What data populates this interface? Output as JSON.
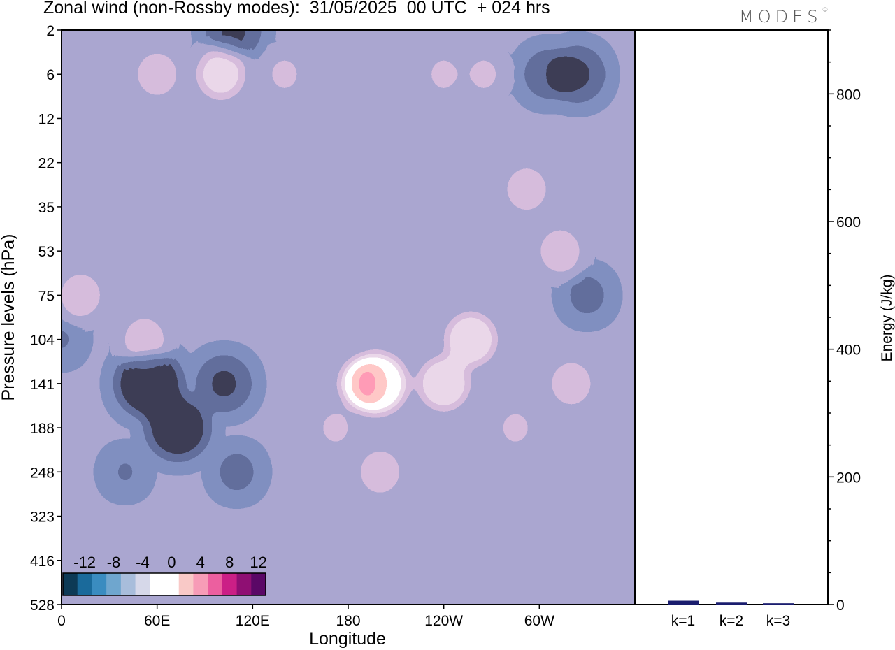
{
  "title": "Zonal wind (non-Rossby modes):  31/05/2025  00 UTC  + 024 hrs",
  "logo": "MODES",
  "logo_mark": "©",
  "colors": {
    "neg": [
      "#0d3a56",
      "#1a6a9b",
      "#3a8cc0",
      "#6fa6ce",
      "#a8bddb",
      "#d6d8e9"
    ],
    "zero": "#ffffff",
    "pos": [
      "#f9c9c7",
      "#f79cb7",
      "#ec5f9f",
      "#cb1f86",
      "#8f0f73",
      "#5a0866"
    ],
    "bars": "#1a1d6e"
  },
  "chart_data": [
    {
      "type": "heatmap",
      "title": "Zonal wind (non-Rossby modes):  31/05/2025  00 UTC  + 024 hrs",
      "xlabel": "Longitude",
      "ylabel": "Pressure levels (hPa)",
      "x_ticks": [
        "0",
        "60E",
        "120E",
        "180",
        "120W",
        "60W"
      ],
      "y_ticks": [
        "2",
        "6",
        "12",
        "22",
        "35",
        "53",
        "75",
        "104",
        "141",
        "188",
        "248",
        "323",
        "416",
        "528"
      ],
      "colorbar_ticks": [
        "-12",
        "-8",
        "-4",
        "0",
        "4",
        "8",
        "12"
      ],
      "contour_levels": [
        -14,
        -12,
        -10,
        -8,
        -6,
        -4,
        -2,
        2,
        4,
        6,
        8,
        10,
        12,
        14
      ],
      "features": [
        {
          "lon": 55,
          "level": "141",
          "value": -14
        },
        {
          "lon": 73,
          "level": "188",
          "value": -13
        },
        {
          "lon": 102,
          "level": "141",
          "value": -10
        },
        {
          "lon": 108,
          "level": "2",
          "value": -10
        },
        {
          "lon": 110,
          "level": "248",
          "value": -6
        },
        {
          "lon": 324,
          "level": "6",
          "value": -10
        },
        {
          "lon": 305,
          "level": "6",
          "value": -8
        },
        {
          "lon": 330,
          "level": "75",
          "value": -6
        },
        {
          "lon": 0,
          "level": "104",
          "value": -4
        },
        {
          "lon": 60,
          "level": "8",
          "value": 6
        },
        {
          "lon": 100,
          "level": "6",
          "value": 8
        },
        {
          "lon": 140,
          "level": "4",
          "value": 4
        },
        {
          "lon": 198,
          "level": "141",
          "value": 12
        },
        {
          "lon": 189,
          "level": "141",
          "value": 8
        },
        {
          "lon": 200,
          "level": "248",
          "value": 6
        },
        {
          "lon": 240,
          "level": "141",
          "value": 9
        },
        {
          "lon": 257,
          "level": "104",
          "value": 9
        },
        {
          "lon": 172,
          "level": "188",
          "value": 4
        },
        {
          "lon": 285,
          "level": "188",
          "value": 4
        },
        {
          "lon": 292,
          "level": "26",
          "value": 6
        },
        {
          "lon": 313,
          "level": "53",
          "value": 6
        },
        {
          "lon": 320,
          "level": "141",
          "value": 6
        },
        {
          "lon": 52,
          "level": "104",
          "value": 6
        },
        {
          "lon": 12,
          "level": "75",
          "value": 6
        },
        {
          "lon": 40,
          "level": "248",
          "value": -4
        },
        {
          "lon": 240,
          "level": "6",
          "value": 4
        },
        {
          "lon": 265,
          "level": "6",
          "value": 4
        }
      ]
    },
    {
      "type": "bar",
      "ylabel": "Energy (J/kg)",
      "categories": [
        "k=1",
        "k=2",
        "k=3"
      ],
      "values": [
        6,
        3,
        2
      ],
      "y_ticks": [
        "0",
        "200",
        "400",
        "600",
        "800"
      ],
      "ylim": [
        0,
        900
      ]
    }
  ]
}
